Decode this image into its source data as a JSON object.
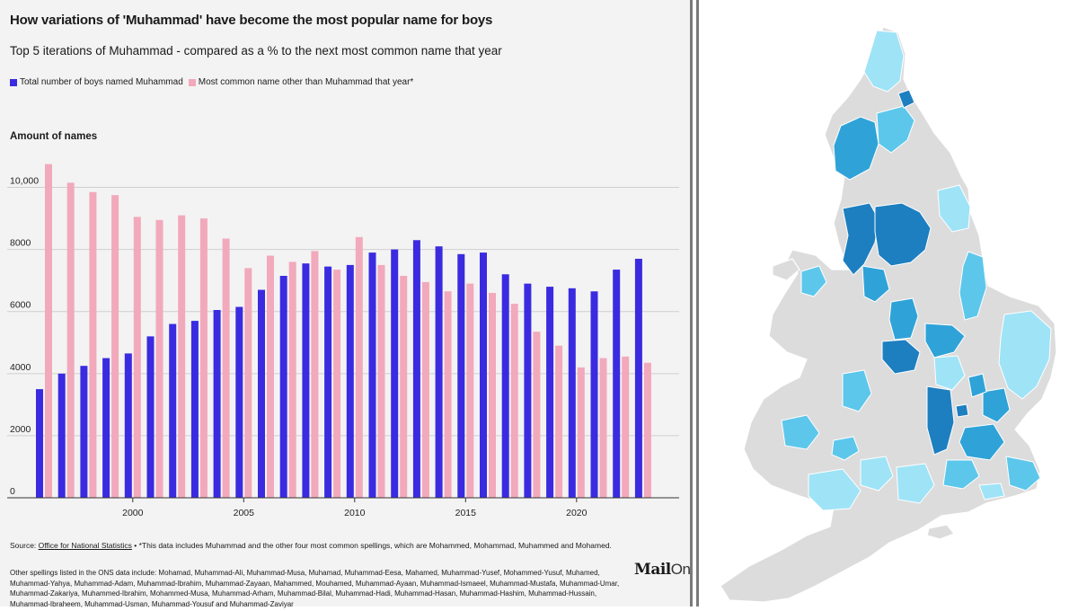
{
  "title": "How variations of 'Muhammad' have become the most popular name for boys",
  "subtitle": "Top 5 iterations of Muhammad - compared as a % to the next most common name that year",
  "legend": {
    "muhammad": "Total number of boys named Muhammad",
    "other": "Most common name other than Muhammad that year*"
  },
  "y_axis_title": "Amount of names",
  "source_prefix": "Source: ",
  "source_link": "Office for National Statistics",
  "source_note": " • *This data includes Muhammad and the other four most common spellings, which are Mohammed, Mohammad, Muhammed and Mohamed.",
  "other_spellings": "Other spellings listed in the ONS data include: Mohamad, Muhammad-Ali, Muhammad-Musa, Muhamad, Muhammad-Eesa, Mahamed, Muhammad-Yusef, Mohammed-Yusuf, Muhamed, Muhammad-Yahya, Muhammad-Adam, Muhammad-Ibrahim, Muhammad-Zayaan, Mahammed, Mouhamed, Muhammad-Ayaan, Muhammad-Ismaeel, Muhammad-Mustafa, Muhammad-Umar, Muhammad-Zakariya, Muhammed-Ibrahim, Mohammed-Musa, Muhammad-Arham, Muhammad-Bilal, Muhammad-Hadi, Muhammad-Hasan, Muhammad-Hashim, Muhammad-Hussain, Muhammad-Ibraheem, Muhammad-Usman, Muhammad-Yousuf and Muhammad-Zaviyar",
  "logo": {
    "mail": "Mail",
    "online": "Online"
  },
  "colors": {
    "muhammad": "#3a2be0",
    "other": "#f2a9bc",
    "grid": "#cfcfcf",
    "axis": "#333333"
  },
  "chart_data": {
    "type": "bar",
    "categories": [
      1996,
      1997,
      1998,
      1999,
      2000,
      2001,
      2002,
      2003,
      2004,
      2005,
      2006,
      2007,
      2008,
      2009,
      2010,
      2011,
      2012,
      2013,
      2014,
      2015,
      2016,
      2017,
      2018,
      2019,
      2020,
      2021,
      2022,
      2023
    ],
    "x_tick_labels": [
      "2000",
      "2005",
      "2010",
      "2015",
      "2020"
    ],
    "x_tick_values": [
      2000,
      2005,
      2010,
      2015,
      2020
    ],
    "y_tick_labels": [
      "0",
      "2000",
      "4000",
      "6000",
      "8000",
      "10,000"
    ],
    "y_tick_values": [
      0,
      2000,
      4000,
      6000,
      8000,
      10000
    ],
    "ylim": [
      0,
      11000
    ],
    "grid": true,
    "series": [
      {
        "name": "Total number of boys named Muhammad",
        "values": [
          3500,
          4000,
          4250,
          4500,
          4650,
          5200,
          5600,
          5700,
          6050,
          6150,
          6700,
          7150,
          7550,
          7450,
          7500,
          7900,
          8000,
          8300,
          8100,
          7850,
          7900,
          7200,
          6900,
          6800,
          6750,
          6650,
          7350,
          7700
        ]
      },
      {
        "name": "Most common name other than Muhammad that year*",
        "values": [
          10750,
          10150,
          9850,
          9750,
          9050,
          8950,
          9100,
          9000,
          8350,
          7400,
          7800,
          7600,
          7950,
          7350,
          8400,
          7500,
          7150,
          6950,
          6650,
          6900,
          6600,
          6250,
          5350,
          4900,
          4200,
          4500,
          4550,
          4350
        ]
      }
    ]
  },
  "map": {
    "colors": {
      "base": "#dcdcdc",
      "border": "#ffffff",
      "light": "#9fe3f7",
      "mid": "#5cc7eb",
      "dark": "#2fa3d8",
      "darkest": "#1d7fc0"
    }
  }
}
